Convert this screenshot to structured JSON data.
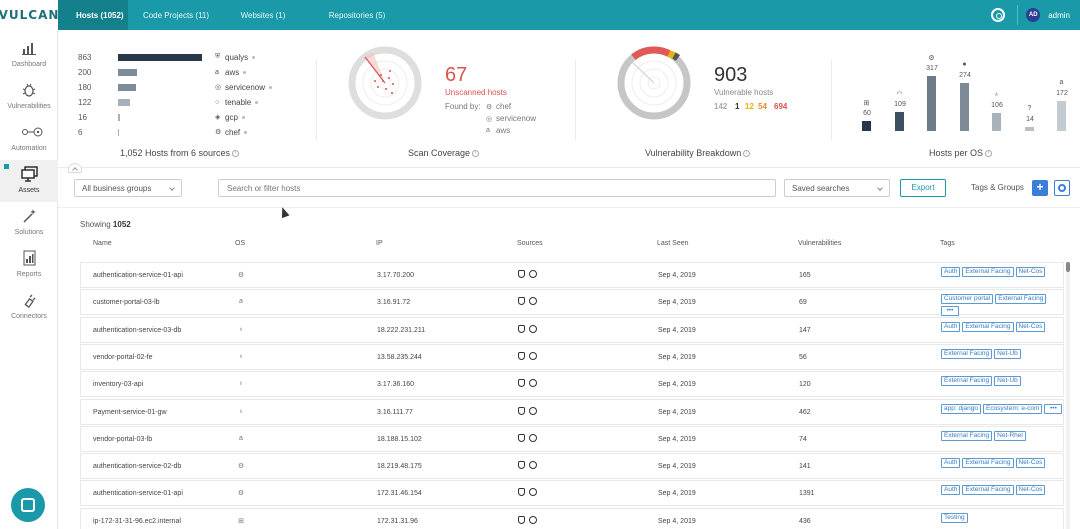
{
  "app": {
    "logo": "VULCAN"
  },
  "top_tabs": [
    {
      "label": "Hosts (1052)",
      "active": true
    },
    {
      "label": "Code Projects (11)",
      "active": false
    },
    {
      "label": "Websites (1)",
      "active": false
    },
    {
      "label": "Repositories (5)",
      "active": false
    }
  ],
  "user": {
    "initials": "AD",
    "name": "admin"
  },
  "sidebar": [
    {
      "label": "Dashboard",
      "icon": "chart-icon"
    },
    {
      "label": "Vulnerabilities",
      "icon": "bug-icon"
    },
    {
      "label": "Automation",
      "icon": "automation-icon"
    },
    {
      "label": "Assets",
      "icon": "monitor-icon",
      "active": true
    },
    {
      "label": "Solutions",
      "icon": "wand-icon"
    },
    {
      "label": "Reports",
      "icon": "report-icon"
    },
    {
      "label": "Connectors",
      "icon": "plug-icon"
    }
  ],
  "sources_panel": {
    "rows": [
      {
        "count": "863",
        "name": "qualys",
        "fraction": 1.0
      },
      {
        "count": "200",
        "name": "aws",
        "fraction": 0.23
      },
      {
        "count": "180",
        "name": "servicenow",
        "fraction": 0.21
      },
      {
        "count": "122",
        "name": "tenable",
        "fraction": 0.14
      },
      {
        "count": "16",
        "name": "gcp",
        "fraction": 0.02
      },
      {
        "count": "6",
        "name": "chef",
        "fraction": 0.01
      }
    ],
    "title": "1,052 Hosts from 6 sources"
  },
  "scan_panel": {
    "value": "67",
    "label": "Unscanned hosts",
    "found_by": "Found by:",
    "found_sources": [
      "chef",
      "servicenow",
      "aws"
    ],
    "title": "Scan Coverage"
  },
  "vuln_panel": {
    "value": "903",
    "label": "Vulnerable hosts",
    "severities": [
      {
        "value": "142",
        "color": "#aaaaaa"
      },
      {
        "value": "1",
        "color": "#333333"
      },
      {
        "value": "12",
        "color": "#e8b400"
      },
      {
        "value": "54",
        "color": "#e8892b"
      },
      {
        "value": "694",
        "color": "#d9534f"
      }
    ],
    "title": "Vulnerability Breakdown"
  },
  "os_panel": {
    "title": "Hosts per OS",
    "bars": [
      {
        "value": "60",
        "n": 60,
        "icon": "windows-icon",
        "color": "#26384a"
      },
      {
        "value": "109",
        "n": 109,
        "icon": "debian-icon",
        "color": "#3b4f60"
      },
      {
        "value": "317",
        "n": 317,
        "icon": "ubuntu-icon",
        "color": "#6c7b88"
      },
      {
        "value": "274",
        "n": 274,
        "icon": "redhat-icon",
        "color": "#7d8b97"
      },
      {
        "value": "106",
        "n": 106,
        "icon": "centos-icon",
        "color": "#a8b2ba"
      },
      {
        "value": "14",
        "n": 14,
        "icon": "unknown-icon",
        "color": "#b8c0c6"
      },
      {
        "value": "172",
        "n": 172,
        "icon": "amazon-icon",
        "color": "#c4cbd0"
      }
    ]
  },
  "filters": {
    "business_groups": "All business groups",
    "search_placeholder": "Search or filter hosts",
    "saved_searches": "Saved searches",
    "export": "Export",
    "tags_groups": "Tags & Groups"
  },
  "table": {
    "showing_label": "Showing",
    "showing_count": "1052",
    "columns": [
      "Name",
      "OS",
      "IP",
      "Sources",
      "Last Seen",
      "Vulnerabilities",
      "Tags"
    ],
    "rows": [
      {
        "name": "authentication-service-01-api",
        "os": "ubuntu-icon",
        "ip": "3.17.70.200",
        "last_seen": "Sep 4, 2019",
        "vulns": "165",
        "tags": [
          "Auth",
          "External Facing",
          "Net-Cos"
        ]
      },
      {
        "name": "customer-portal-03-lb",
        "os": "amazon-icon",
        "ip": "3.16.91.72",
        "last_seen": "Sep 4, 2019",
        "vulns": "69",
        "tags": [
          "Customer portal",
          "External Facing",
          "•••"
        ]
      },
      {
        "name": "authentication-service-03-db",
        "os": "centos-icon",
        "ip": "18.222.231.211",
        "last_seen": "Sep 4, 2019",
        "vulns": "147",
        "tags": [
          "Auth",
          "External Facing",
          "Net-Cos"
        ]
      },
      {
        "name": "vendor-portal-02-fe",
        "os": "centos-icon",
        "ip": "13.58.235.244",
        "last_seen": "Sep 4, 2019",
        "vulns": "56",
        "tags": [
          "External Facing",
          "Net-Ub"
        ]
      },
      {
        "name": "inventory-03-api",
        "os": "centos-icon",
        "ip": "3.17.36.160",
        "last_seen": "Sep 4, 2019",
        "vulns": "120",
        "tags": [
          "External Facing",
          "Net-Ub"
        ]
      },
      {
        "name": "Payment-service-01-gw",
        "os": "centos-icon",
        "ip": "3.16.111.77",
        "last_seen": "Sep 4, 2019",
        "vulns": "462",
        "tags": [
          "app: django",
          "Ecosystem: e-com",
          "•••"
        ]
      },
      {
        "name": "vendor-portal-03-lb",
        "os": "amazon-icon",
        "ip": "18.188.15.102",
        "last_seen": "Sep 4, 2019",
        "vulns": "74",
        "tags": [
          "External Facing",
          "Net-Rhel"
        ]
      },
      {
        "name": "authentication-service-02-db",
        "os": "ubuntu-icon",
        "ip": "18.219.48.175",
        "last_seen": "Sep 4, 2019",
        "vulns": "141",
        "tags": [
          "Auth",
          "External Facing",
          "Net-Cos"
        ]
      },
      {
        "name": "authentication-service-01-api",
        "os": "ubuntu-icon",
        "ip": "172.31.46.154",
        "last_seen": "Sep 4, 2019",
        "vulns": "1391",
        "tags": [
          "Auth",
          "External Facing",
          "Net-Cos"
        ]
      },
      {
        "name": "ip-172-31-31-96.ec2.internal",
        "os": "windows-icon",
        "ip": "172.31.31.96",
        "last_seen": "Sep 4, 2019",
        "vulns": "436",
        "tags": [
          "Testing"
        ]
      }
    ]
  }
}
